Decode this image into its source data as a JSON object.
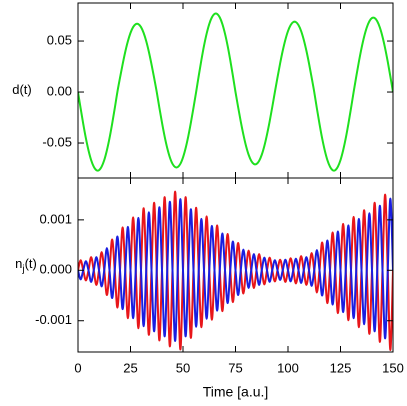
{
  "chart_data": [
    {
      "type": "line",
      "ylabel": "d(t)",
      "xlim": [
        0,
        150
      ],
      "ylim": [
        -0.0843,
        0.0873
      ],
      "yticks": [
        0.05,
        {
          "value": 0,
          "label": "0.00"
        },
        -0.05
      ],
      "x": [
        0,
        1.25,
        2.5,
        3.75,
        5,
        6.25,
        7.5,
        8.75,
        10,
        11.25,
        12.5,
        13.75,
        15,
        16.25,
        17.5,
        18.75,
        20,
        21.25,
        22.5,
        23.75,
        25,
        26.25,
        27.5,
        28.75,
        30,
        31.25,
        32.5,
        33.75,
        35,
        36.25,
        37.5,
        38.75,
        40,
        41.25,
        42.5,
        43.75,
        45,
        46.25,
        47.5,
        48.75,
        50,
        51.25,
        52.5,
        53.75,
        55,
        56.25,
        57.5,
        58.75,
        60,
        61.25,
        62.5,
        63.75,
        65,
        66.25,
        67.5,
        68.75,
        70,
        71.25,
        72.5,
        73.75,
        75,
        76.25,
        77.5,
        78.75,
        80,
        81.25,
        82.5,
        83.75,
        85,
        86.25,
        87.5,
        88.75,
        90,
        91.25,
        92.5,
        93.75,
        95,
        96.25,
        97.5,
        98.75,
        100,
        101.25,
        102.5,
        103.75,
        105,
        106.25,
        107.5,
        108.75,
        110,
        111.25,
        112.5,
        113.75,
        115,
        116.25,
        117.5,
        118.75,
        120,
        121.25,
        122.5,
        123.75,
        125,
        126.25,
        127.5,
        128.75,
        130,
        131.25,
        132.5,
        133.75,
        135,
        136.25,
        137.5,
        138.75,
        140,
        141.25,
        142.5,
        143.75,
        145,
        146.25,
        147.5,
        148.75,
        150
      ],
      "series": [
        {
          "color": "#1fe01f",
          "values": [
            0,
            -0.016,
            -0.0313,
            -0.0453,
            -0.0572,
            -0.0667,
            -0.0732,
            -0.0766,
            -0.0766,
            -0.0732,
            -0.0667,
            -0.0572,
            -0.0453,
            -0.0313,
            -0.016,
            0,
            0.0139,
            0.0272,
            0.0394,
            0.0498,
            0.058,
            0.0637,
            0.0666,
            0.0666,
            0.0637,
            0.058,
            0.0498,
            0.0394,
            0.0272,
            0.0139,
            0,
            -0.0154,
            -0.0301,
            -0.0435,
            -0.055,
            -0.0641,
            -0.0704,
            -0.0736,
            -0.0736,
            -0.0704,
            -0.0641,
            -0.055,
            -0.0435,
            -0.0301,
            -0.0154,
            0,
            0.016,
            0.0313,
            0.0453,
            0.0572,
            0.0667,
            0.0732,
            0.0766,
            0.0766,
            0.0732,
            0.0667,
            0.0572,
            0.0453,
            0.0313,
            0.016,
            0,
            -0.0148,
            -0.0289,
            -0.0417,
            -0.0528,
            -0.0615,
            -0.0675,
            -0.0706,
            -0.0706,
            -0.0675,
            -0.0615,
            -0.0528,
            -0.0417,
            -0.0289,
            -0.0148,
            0,
            0.0143,
            0.0281,
            0.0406,
            0.0513,
            0.0598,
            0.0656,
            0.0686,
            0.0686,
            0.0656,
            0.0598,
            0.0513,
            0.0406,
            0.0281,
            0.0143,
            0,
            -0.016,
            -0.0313,
            -0.0453,
            -0.0572,
            -0.0667,
            -0.0732,
            -0.0766,
            -0.0766,
            -0.0732,
            -0.0667,
            -0.0572,
            -0.0453,
            -0.0313,
            -0.016,
            0,
            0.0152,
            0.0297,
            0.0429,
            0.0542,
            0.0632,
            0.0694,
            0.0726,
            0.0726,
            0.0694,
            0.0632,
            0.0542,
            0.0429,
            0.0297,
            0.0152,
            0
          ]
        }
      ]
    },
    {
      "type": "line",
      "ylabel": {
        "base": "n",
        "sub": "j",
        "tail": "(t)"
      },
      "xlabel": "Time [a.u.]",
      "xlim": [
        0,
        150
      ],
      "xticks": [
        0,
        25,
        50,
        75,
        100,
        125,
        150
      ],
      "ylim": [
        -0.00162,
        0.00183
      ],
      "yticks": [
        0.001,
        {
          "value": 0,
          "label": "0.000"
        },
        -0.001
      ],
      "x": [
        0,
        1.25,
        2.5,
        3.75,
        5,
        6.25,
        7.5,
        8.75,
        10,
        11.25,
        12.5,
        13.75,
        15,
        16.25,
        17.5,
        18.75,
        20,
        21.25,
        22.5,
        23.75,
        25,
        26.25,
        27.5,
        28.75,
        30,
        31.25,
        32.5,
        33.75,
        35,
        36.25,
        37.5,
        38.75,
        40,
        41.25,
        42.5,
        43.75,
        45,
        46.25,
        47.5,
        48.75,
        50,
        51.25,
        52.5,
        53.75,
        55,
        56.25,
        57.5,
        58.75,
        60,
        61.25,
        62.5,
        63.75,
        65,
        66.25,
        67.5,
        68.75,
        70,
        71.25,
        72.5,
        73.75,
        75,
        76.25,
        77.5,
        78.75,
        80,
        81.25,
        82.5,
        83.75,
        85,
        86.25,
        87.5,
        88.75,
        90,
        91.25,
        92.5,
        93.75,
        95,
        96.25,
        97.5,
        98.75,
        100,
        101.25,
        102.5,
        103.75,
        105,
        106.25,
        107.5,
        108.75,
        110,
        111.25,
        112.5,
        113.75,
        115,
        116.25,
        117.5,
        118.75,
        120,
        121.25,
        122.5,
        123.75,
        125,
        126.25,
        127.5,
        128.75,
        130,
        131.25,
        132.5,
        133.75,
        135,
        136.25,
        137.5,
        138.75,
        140,
        141.25,
        142.5,
        143.75,
        145,
        146.25,
        147.5,
        148.75,
        150
      ],
      "series": [
        {
          "color": "#e8161a",
          "values": [
            0,
            0.0002,
            0,
            -0.0002,
            0,
            0.00026,
            0,
            -0.00029,
            0,
            0.00036,
            0,
            -0.00049,
            0,
            0.00061,
            0,
            -0.00074,
            0,
            0.00085,
            0,
            -0.00095,
            0,
            0.00105,
            0,
            -0.00115,
            0,
            0.00123,
            0,
            -0.00128,
            0,
            0.00134,
            0,
            -0.00139,
            0,
            0.00145,
            0,
            -0.00151,
            0,
            0.00156,
            0,
            -0.00157,
            0,
            0.00145,
            0,
            -0.00134,
            0,
            0.00124,
            0,
            -0.00113,
            0,
            0.00107,
            0,
            -0.00098,
            0,
            0.00089,
            0,
            -0.00081,
            0,
            0.00072,
            0,
            -0.00063,
            0,
            0.00054,
            0,
            -0.00046,
            0,
            0.00039,
            0,
            -0.00035,
            0,
            0.00032,
            0,
            -0.00028,
            0,
            0.00025,
            0,
            -0.00022,
            0,
            0.00021,
            0,
            -0.00023,
            0,
            0.00024,
            0,
            -0.00026,
            0,
            0.00028,
            0,
            -0.00029,
            0,
            0.00034,
            0,
            -0.00044,
            0,
            0.00055,
            0,
            -0.00065,
            0,
            0.00075,
            0,
            -0.00085,
            0,
            0.00092,
            0,
            -0.00099,
            0,
            0.00106,
            0,
            -0.00113,
            0,
            0.00119,
            0,
            -0.00126,
            0,
            0.00134,
            0,
            -0.00142,
            0,
            0.0015,
            0,
            -0.00158,
            0
          ]
        },
        {
          "color": "#1a1ee0",
          "values": [
            0,
            -0.00018,
            0,
            0.00018,
            0,
            -0.00023,
            0,
            0.00026,
            0,
            -0.00032,
            0,
            0.00044,
            0,
            -0.00055,
            0,
            0.00067,
            0,
            -0.00077,
            0,
            0.00086,
            0,
            -0.00095,
            0,
            0.00104,
            0,
            -0.00111,
            0,
            0.00115,
            0,
            -0.00121,
            0,
            0.00125,
            0,
            -0.00131,
            0,
            0.00136,
            0,
            -0.0014,
            0,
            0.00141,
            0,
            -0.00131,
            0,
            0.00121,
            0,
            -0.00112,
            0,
            0.00102,
            0,
            -0.00096,
            0,
            0.00088,
            0,
            -0.0008,
            0,
            0.00073,
            0,
            -0.00065,
            0,
            0.00057,
            0,
            -0.00049,
            0,
            0.00041,
            0,
            -0.00035,
            0,
            0.00032,
            0,
            -0.00029,
            0,
            0.00025,
            0,
            -0.00023,
            0,
            0.0002,
            0,
            -0.00019,
            0,
            0.00021,
            0,
            -0.00022,
            0,
            0.00023,
            0,
            -0.00025,
            0,
            0.00026,
            0,
            -0.00031,
            0,
            0.0004,
            0,
            -0.0005,
            0,
            0.00059,
            0,
            -0.00068,
            0,
            0.00077,
            0,
            -0.00083,
            0,
            0.00089,
            0,
            -0.00095,
            0,
            0.00102,
            0,
            -0.00107,
            0,
            0.00113,
            0,
            -0.00121,
            0,
            0.00128,
            0,
            -0.00135,
            0,
            0.00142,
            0
          ]
        }
      ]
    }
  ]
}
